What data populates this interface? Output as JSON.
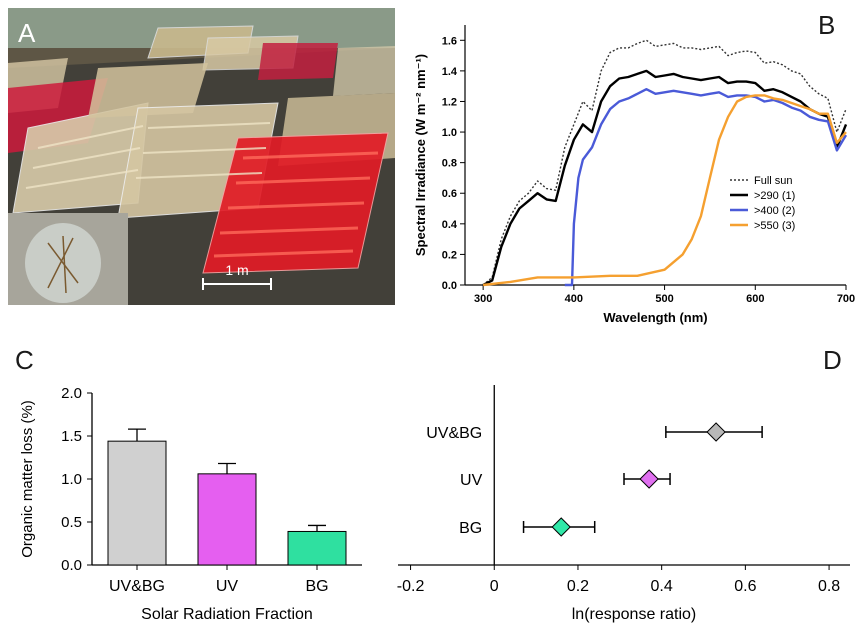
{
  "panels": {
    "a": {
      "letter": "A",
      "scale_label": "1 m"
    },
    "b": {
      "letter": "B"
    },
    "c": {
      "letter": "C"
    },
    "d": {
      "letter": "D"
    }
  },
  "chart_data": [
    {
      "type": "line",
      "xlabel": "Wavelength (nm)",
      "ylabel": "Spectral Irradiance (W m⁻² nm⁻¹)",
      "xlim": [
        280,
        700
      ],
      "ylim": [
        0,
        1.7
      ],
      "xticks": [
        "300",
        "400",
        "500",
        "600",
        "700"
      ],
      "yticks": [
        "0.0",
        "0.2",
        "0.4",
        "0.6",
        "0.8",
        "1.0",
        "1.2",
        "1.4",
        "1.6"
      ],
      "legend_position": "right",
      "series": [
        {
          "name": "Full sun",
          "color": "#333333",
          "dash": true,
          "x": [
            300,
            310,
            320,
            330,
            340,
            350,
            360,
            370,
            380,
            390,
            400,
            410,
            420,
            430,
            440,
            450,
            460,
            470,
            480,
            490,
            500,
            510,
            520,
            530,
            540,
            550,
            560,
            570,
            580,
            590,
            600,
            610,
            620,
            630,
            640,
            650,
            660,
            670,
            680,
            690,
            700
          ],
          "y": [
            0.0,
            0.05,
            0.3,
            0.45,
            0.55,
            0.6,
            0.68,
            0.63,
            0.62,
            0.9,
            1.05,
            1.2,
            1.14,
            1.4,
            1.52,
            1.55,
            1.55,
            1.58,
            1.6,
            1.56,
            1.57,
            1.58,
            1.55,
            1.55,
            1.54,
            1.55,
            1.56,
            1.5,
            1.52,
            1.53,
            1.52,
            1.45,
            1.46,
            1.44,
            1.4,
            1.38,
            1.3,
            1.25,
            1.22,
            1.0,
            1.15
          ]
        },
        {
          "name": ">290 (1)",
          "color": "#000000",
          "dash": false,
          "x": [
            300,
            310,
            320,
            330,
            340,
            350,
            360,
            370,
            380,
            390,
            400,
            410,
            420,
            430,
            440,
            450,
            460,
            470,
            480,
            490,
            500,
            510,
            520,
            530,
            540,
            550,
            560,
            570,
            580,
            590,
            600,
            610,
            620,
            630,
            640,
            650,
            660,
            670,
            680,
            690,
            700
          ],
          "y": [
            0.0,
            0.03,
            0.25,
            0.4,
            0.5,
            0.55,
            0.6,
            0.56,
            0.55,
            0.78,
            0.95,
            1.05,
            1.0,
            1.2,
            1.3,
            1.35,
            1.36,
            1.38,
            1.4,
            1.36,
            1.37,
            1.38,
            1.36,
            1.35,
            1.34,
            1.35,
            1.36,
            1.32,
            1.33,
            1.33,
            1.32,
            1.27,
            1.28,
            1.26,
            1.23,
            1.2,
            1.15,
            1.12,
            1.1,
            0.9,
            1.05
          ]
        },
        {
          "name": ">400 (2)",
          "color": "#4a5ad8",
          "dash": false,
          "x": [
            390,
            398,
            400,
            405,
            410,
            420,
            430,
            440,
            450,
            460,
            470,
            480,
            490,
            500,
            510,
            520,
            530,
            540,
            550,
            560,
            570,
            580,
            590,
            600,
            610,
            620,
            630,
            640,
            650,
            660,
            670,
            680,
            690,
            700
          ],
          "y": [
            0.0,
            0.0,
            0.4,
            0.7,
            0.82,
            0.9,
            1.05,
            1.15,
            1.2,
            1.22,
            1.25,
            1.28,
            1.25,
            1.26,
            1.27,
            1.26,
            1.25,
            1.24,
            1.25,
            1.26,
            1.23,
            1.24,
            1.24,
            1.23,
            1.2,
            1.21,
            1.19,
            1.16,
            1.14,
            1.1,
            1.08,
            1.07,
            0.88,
            0.98
          ]
        },
        {
          "name": ">550 (3)",
          "color": "#f5a030",
          "dash": false,
          "x": [
            300,
            330,
            360,
            400,
            440,
            470,
            500,
            520,
            530,
            540,
            550,
            560,
            570,
            580,
            590,
            600,
            610,
            620,
            630,
            640,
            650,
            660,
            670,
            680,
            690,
            700
          ],
          "y": [
            0.0,
            0.02,
            0.05,
            0.05,
            0.06,
            0.06,
            0.1,
            0.2,
            0.3,
            0.45,
            0.7,
            0.95,
            1.1,
            1.2,
            1.23,
            1.24,
            1.24,
            1.22,
            1.21,
            1.19,
            1.17,
            1.15,
            1.12,
            1.12,
            0.93,
            1.0
          ]
        }
      ]
    },
    {
      "type": "bar",
      "xlabel": "Solar Radiation Fraction",
      "ylabel": "Organic matter loss (%)",
      "ylim": [
        0,
        2.0
      ],
      "yticks": [
        "0.0",
        "0.5",
        "1.0",
        "1.5",
        "2.0"
      ],
      "categories": [
        "UV&BG",
        "UV",
        "BG"
      ],
      "values": [
        1.44,
        1.06,
        0.39
      ],
      "errors": [
        0.14,
        0.12,
        0.07
      ],
      "colors": [
        "#d0d0d0",
        "#e55ff0",
        "#2fe0a0"
      ]
    },
    {
      "type": "scatter",
      "xlabel": "ln(response ratio)",
      "xlim": [
        -0.23,
        0.85
      ],
      "xticks": [
        "-0.2",
        "0",
        "0.2",
        "0.4",
        "0.6",
        "0.8"
      ],
      "categories": [
        "UV&BG",
        "UV",
        "BG"
      ],
      "values": [
        0.53,
        0.37,
        0.16
      ],
      "ci_low": [
        0.41,
        0.31,
        0.07
      ],
      "ci_high": [
        0.64,
        0.42,
        0.24
      ],
      "colors": [
        "#b8b8b8",
        "#e070f0",
        "#30e8a8"
      ]
    }
  ]
}
